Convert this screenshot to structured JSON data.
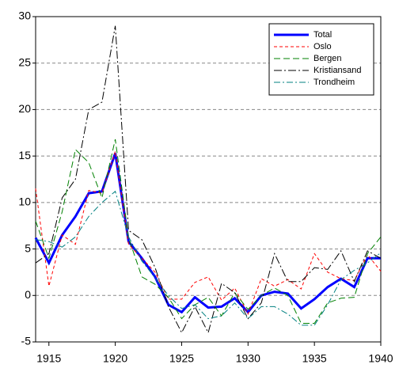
{
  "chart_data": {
    "type": "line",
    "x": [
      1914,
      1915,
      1916,
      1917,
      1918,
      1919,
      1920,
      1921,
      1922,
      1923,
      1924,
      1925,
      1926,
      1927,
      1928,
      1929,
      1930,
      1931,
      1932,
      1933,
      1934,
      1935,
      1936,
      1937,
      1938,
      1939,
      1940
    ],
    "xlim": [
      1914,
      1940
    ],
    "xticks": [
      1915,
      1920,
      1925,
      1930,
      1935,
      1940
    ],
    "ylim": [
      -5,
      30
    ],
    "yticks": [
      -5,
      0,
      5,
      10,
      15,
      20,
      25,
      30
    ],
    "grid": true,
    "legend": "top-right",
    "series": [
      {
        "name": "Total",
        "color": "#0000ff",
        "width": 3,
        "dash": "none",
        "values": [
          6.2,
          3.5,
          6.5,
          8.5,
          11,
          11.2,
          15.3,
          5.8,
          4,
          2,
          -1,
          -1.8,
          -0.2,
          -1.3,
          -1.2,
          -0.3,
          -1.8,
          0,
          0.4,
          0.2,
          -1.4,
          -0.4,
          0.9,
          1.8,
          0.9,
          4,
          4
        ]
      },
      {
        "name": "Oslo",
        "color": "#ff0000",
        "width": 1,
        "dash": "4 3",
        "values": [
          11.5,
          1,
          6.5,
          5.5,
          11.3,
          11,
          15.5,
          5.5,
          4,
          2.5,
          -0.4,
          -0.4,
          1.4,
          2,
          -0.5,
          0.8,
          -2,
          1.8,
          1,
          1.7,
          0.7,
          4.5,
          2.5,
          1.8,
          1.6,
          4.4,
          2.6
        ]
      },
      {
        "name": "Bergen",
        "color": "#008000",
        "width": 1,
        "dash": "8 4",
        "values": [
          8,
          4,
          9,
          15.7,
          14.3,
          10.5,
          16.8,
          6.2,
          2,
          1.2,
          -0.2,
          -2.5,
          -1,
          -0.2,
          -2.2,
          0.3,
          -1.5,
          0,
          0.8,
          0,
          -3,
          -3,
          -0.8,
          -0.3,
          -0.2,
          4.5,
          6.3
        ]
      },
      {
        "name": "Kristiansand",
        "color": "#000000",
        "width": 1,
        "dash": "10 3 2 3",
        "values": [
          3.5,
          4.5,
          10.5,
          12.5,
          20,
          20.8,
          29,
          7,
          6,
          3,
          -1.2,
          -4,
          -1.2,
          -4,
          1.3,
          0.3,
          -2.5,
          -0.8,
          4.5,
          1.5,
          1.5,
          3,
          2.8,
          4.8,
          1.5,
          4.8,
          4
        ]
      },
      {
        "name": "Trondheim",
        "color": "#008080",
        "width": 1,
        "dash": "8 3 2 3",
        "values": [
          6,
          5.8,
          5.2,
          6.3,
          8.5,
          10,
          11.2,
          6.3,
          3.7,
          1.9,
          0,
          -1.4,
          -1,
          -2.5,
          -2.2,
          -0.8,
          -2.5,
          -1.2,
          -1.2,
          -2,
          -3.2,
          -3.2,
          -1,
          1.7,
          2.7,
          3.5,
          4.6
        ]
      }
    ]
  }
}
